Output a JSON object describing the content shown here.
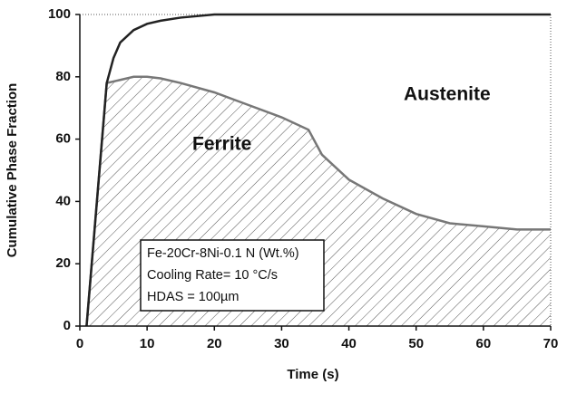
{
  "chart_data": {
    "type": "area-line",
    "x_label": "Time (s)",
    "y_label": "Cumulative Phase Fraction",
    "x": [
      1,
      2,
      3,
      4,
      5,
      6,
      8,
      10,
      12,
      15,
      20,
      25,
      30,
      34,
      36,
      40,
      45,
      50,
      55,
      60,
      65,
      70
    ],
    "series": [
      {
        "color": "#777777",
        "fill": "hatch",
        "values": [
          0,
          26,
          52,
          78,
          78.5,
          79,
          80,
          80,
          79.5,
          78,
          75,
          71,
          67,
          63,
          55,
          47,
          41,
          36,
          33,
          32,
          31,
          31
        ]
      },
      {
        "color": "#222222",
        "values": [
          0,
          26,
          52,
          78,
          86,
          91,
          95,
          97,
          98,
          99,
          100,
          100,
          100,
          100,
          100,
          100,
          100,
          100,
          100,
          100,
          100,
          100
        ]
      }
    ],
    "xlim": [
      0,
      70
    ],
    "xticks": [
      0,
      10,
      20,
      30,
      40,
      50,
      60,
      70
    ],
    "ylim": [
      0,
      100
    ],
    "yticks": [
      0,
      20,
      40,
      60,
      80,
      100
    ],
    "grid": false,
    "annotations": {
      "regions": [
        "Ferrite",
        "Austenite"
      ],
      "box": [
        "Fe-20Cr-8Ni-0.1 N (Wt.%)",
        "Cooling Rate= 10 °C/s",
        "HDAS = 100µm"
      ]
    }
  }
}
